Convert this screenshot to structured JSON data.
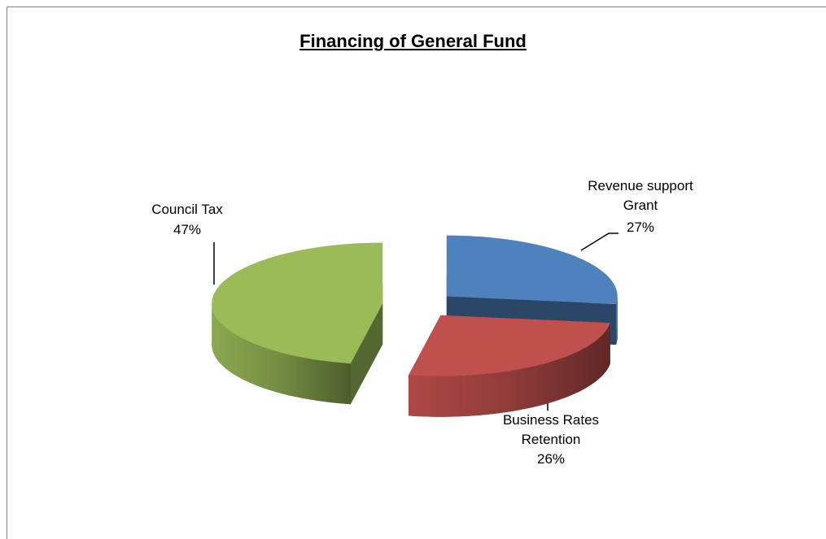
{
  "chart_data": {
    "type": "pie3d",
    "title": "Financing of General Fund",
    "categories": [
      "Revenue support Grant",
      "Business Rates Retention",
      "Council Tax"
    ],
    "values": [
      27,
      26,
      47
    ],
    "value_labels": [
      "27%",
      "26%",
      "47%"
    ],
    "colors": [
      "#4f81bd",
      "#c0504d",
      "#9bbb59"
    ]
  }
}
